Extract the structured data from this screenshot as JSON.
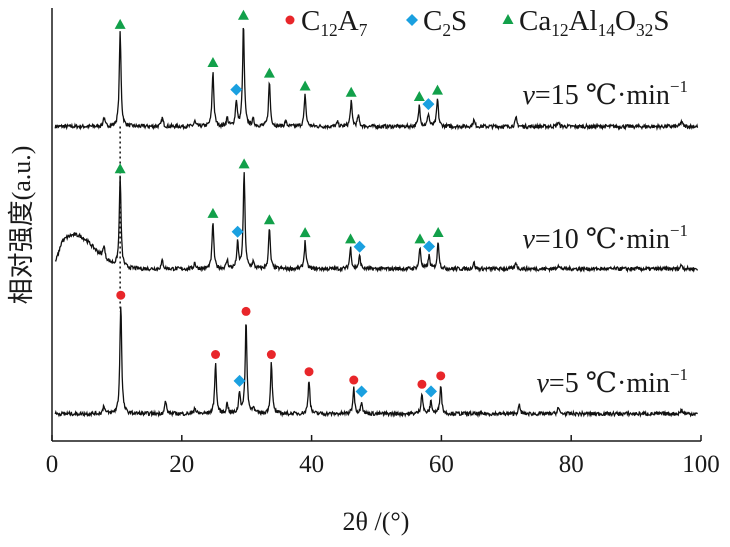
{
  "chart_data": {
    "type": "line",
    "xlabel": "2θ /(°)",
    "ylabel": "相对强度(a.u.)",
    "xlim": [
      0,
      100
    ],
    "ylim": [
      0,
      100
    ],
    "xticks": [
      "0",
      "20",
      "40",
      "60",
      "80",
      "100"
    ],
    "grid": false,
    "legend_placement": "top-right",
    "legend": [
      {
        "name": "C12A7",
        "marker": "circle",
        "color": "#e8262a"
      },
      {
        "name": "C2S",
        "marker": "diamond",
        "color": "#1aa0e0"
      },
      {
        "name": "Ca12Al14O32S",
        "marker": "triangle",
        "color": "#12a04a"
      }
    ],
    "series": [
      {
        "name": "v=15",
        "rate": "15",
        "unit": "℃·min",
        "exp": "−1",
        "offset": 74,
        "peaks": [
          [
            10.5,
            22
          ],
          [
            24.8,
            13
          ],
          [
            28.4,
            6
          ],
          [
            29.5,
            24
          ],
          [
            33.5,
            10.5
          ],
          [
            39,
            7.5
          ],
          [
            46.1,
            6
          ],
          [
            47.2,
            2.5
          ],
          [
            56.6,
            5
          ],
          [
            58,
            3
          ],
          [
            59.4,
            6.5
          ],
          [
            8,
            2
          ],
          [
            17,
            2
          ],
          [
            22,
            1.2
          ],
          [
            27,
            2
          ],
          [
            31,
            1.5
          ],
          [
            36,
            1.2
          ],
          [
            44,
            1
          ],
          [
            65,
            1.5
          ],
          [
            71.5,
            2
          ],
          [
            78,
            1
          ],
          [
            97,
            1.2
          ]
        ],
        "markers": {
          "triangle": [
            10.5,
            24.8,
            29.5,
            33.5,
            39,
            46.1,
            56.6,
            59.4
          ],
          "diamond": [
            28.4,
            58
          ]
        }
      },
      {
        "name": "v=10",
        "rate": "10",
        "unit": "℃·min",
        "exp": "−1",
        "offset": 40.5,
        "hump": [
          3.5,
          8,
          3
        ],
        "peaks": [
          [
            10.5,
            21
          ],
          [
            24.8,
            11
          ],
          [
            28.6,
            6
          ],
          [
            29.6,
            22.5
          ],
          [
            33.5,
            9.5
          ],
          [
            39,
            6.5
          ],
          [
            46,
            5
          ],
          [
            47.4,
            3
          ],
          [
            56.7,
            5
          ],
          [
            58.1,
            3
          ],
          [
            59.5,
            6.5
          ],
          [
            8,
            3
          ],
          [
            17,
            2
          ],
          [
            22,
            1.5
          ],
          [
            27,
            2
          ],
          [
            31,
            1.5
          ],
          [
            65,
            1.5
          ],
          [
            71.5,
            1.5
          ],
          [
            78,
            1
          ],
          [
            97,
            1
          ]
        ],
        "markers": {
          "triangle": [
            10.5,
            24.8,
            29.6,
            33.5,
            39,
            46,
            56.7,
            59.5
          ],
          "diamond": [
            28.6,
            47.4,
            58.1
          ]
        }
      },
      {
        "name": "v=5",
        "rate": "5",
        "unit": "℃·min",
        "exp": "−1",
        "offset": 6.4,
        "peaks": [
          [
            10.6,
            26
          ],
          [
            25.2,
            12
          ],
          [
            28.9,
            5
          ],
          [
            29.9,
            22
          ],
          [
            33.8,
            12
          ],
          [
            39.6,
            8
          ],
          [
            46.5,
            6
          ],
          [
            47.7,
            3
          ],
          [
            57,
            5
          ],
          [
            58.4,
            3
          ],
          [
            59.9,
            7
          ],
          [
            8,
            2
          ],
          [
            17.5,
            3
          ],
          [
            22,
            1.5
          ],
          [
            27,
            2.5
          ],
          [
            31,
            1.5
          ],
          [
            72,
            2
          ],
          [
            78,
            1.5
          ],
          [
            97,
            1
          ]
        ],
        "markers": {
          "circle": [
            10.6,
            25.2,
            29.9,
            33.8,
            39.6,
            46.5,
            57,
            59.9
          ],
          "diamond": [
            28.9,
            47.7,
            58.4
          ]
        }
      }
    ],
    "reference_line_x": 10.5
  }
}
